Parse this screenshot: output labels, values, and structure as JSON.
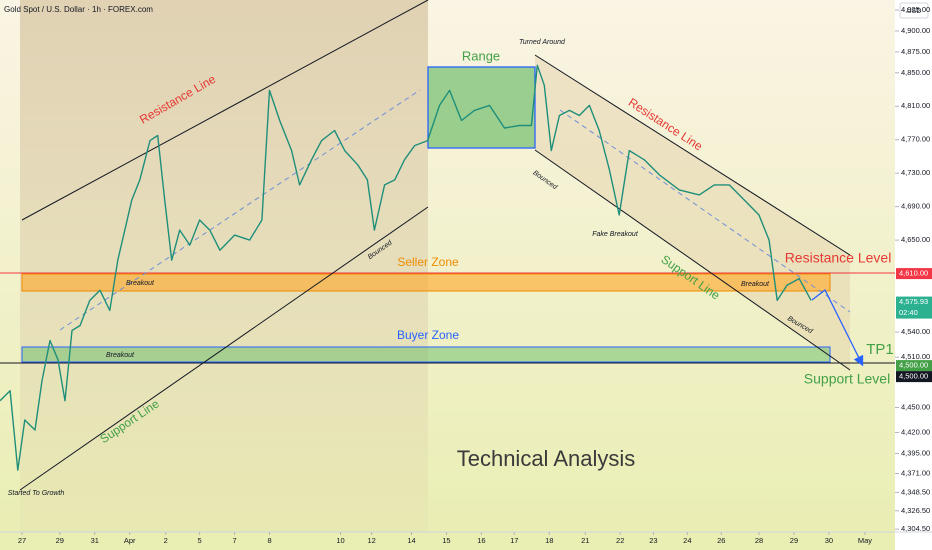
{
  "header": {
    "title": "Gold Spot / U.S. Dollar · 1h · FOREX.com",
    "currency": "USD"
  },
  "chart_data": {
    "type": "line",
    "color": "#1f8f7a",
    "x": [
      0,
      0.29,
      0.51,
      0.71,
      1,
      1.2,
      1.43,
      1.66,
      1.86,
      2.06,
      2.29,
      2.57,
      2.86,
      3.14,
      3.37,
      3.57,
      3.77,
      4,
      4.29,
      4.51,
      4.71,
      4.91,
      5.14,
      5.43,
      5.71,
      6,
      6.29,
      6.71,
      7.14,
      7.49,
      7.71,
      8,
      8.34,
      8.57,
      8.91,
      9.2,
      9.57,
      9.86,
      10.23,
      10.51,
      10.71,
      11,
      11.29,
      11.57,
      11.86,
      12.23,
      12.57,
      12.86,
      13.2,
      13.57,
      14,
      14.43,
      14.86,
      15.2,
      15.37,
      15.57,
      15.77,
      16,
      16.29,
      16.57,
      16.86,
      17.14,
      17.43,
      17.71,
      18,
      18.43,
      18.86,
      19.43,
      20,
      20.43,
      20.86,
      21.29,
      21.71,
      22,
      22.23,
      22.51,
      22.86,
      23.2
    ],
    "values": [
      4458,
      4470,
      4375,
      4435,
      4423,
      4482,
      4530,
      4507,
      4458,
      4542,
      4548,
      4578,
      4590,
      4566,
      4626,
      4662,
      4698,
      4722,
      4769,
      4775,
      4698,
      4626,
      4662,
      4644,
      4674,
      4662,
      4638,
      4656,
      4650,
      4674,
      4829,
      4793,
      4757,
      4716,
      4746,
      4769,
      4781,
      4757,
      4740,
      4722,
      4662,
      4716,
      4722,
      4746,
      4763,
      4769,
      4811,
      4829,
      4793,
      4805,
      4811,
      4784,
      4787,
      4787,
      4859,
      4835,
      4757,
      4799,
      4805,
      4799,
      4811,
      4781,
      4734,
      4680,
      4757,
      4746,
      4728,
      4710,
      4704,
      4716,
      4716,
      4698,
      4680,
      4650,
      4578,
      4596,
      4604,
      4578
    ],
    "xlim": [
      0,
      25.6
    ],
    "xticks": [
      {
        "value": 0.63,
        "label": "27"
      },
      {
        "value": 1.71,
        "label": "29"
      },
      {
        "value": 2.71,
        "label": "31"
      },
      {
        "value": 3.71,
        "label": "Apr"
      },
      {
        "value": 4.74,
        "label": "2"
      },
      {
        "value": 5.71,
        "label": "5"
      },
      {
        "value": 6.71,
        "label": "7"
      },
      {
        "value": 7.71,
        "label": "8"
      },
      {
        "value": 9.74,
        "label": "10"
      },
      {
        "value": 10.63,
        "label": "12"
      },
      {
        "value": 11.77,
        "label": "14"
      },
      {
        "value": 12.77,
        "label": "15"
      },
      {
        "value": 13.77,
        "label": "16"
      },
      {
        "value": 14.71,
        "label": "17"
      },
      {
        "value": 15.71,
        "label": "18"
      },
      {
        "value": 16.74,
        "label": "21"
      },
      {
        "value": 17.74,
        "label": "22"
      },
      {
        "value": 18.69,
        "label": "23"
      },
      {
        "value": 19.66,
        "label": "24"
      },
      {
        "value": 20.63,
        "label": "26"
      },
      {
        "value": 21.71,
        "label": "28"
      },
      {
        "value": 22.71,
        "label": "29"
      },
      {
        "value": 23.71,
        "label": "30"
      },
      {
        "value": 24.74,
        "label": "May"
      }
    ],
    "ylim": [
      4282,
      4937
    ],
    "yticks": [
      {
        "value": 4925,
        "label": "4,925.00"
      },
      {
        "value": 4900,
        "label": "4,900.00"
      },
      {
        "value": 4875,
        "label": "4,875.00"
      },
      {
        "value": 4850,
        "label": "4,850.00"
      },
      {
        "value": 4810,
        "label": "4,810.00"
      },
      {
        "value": 4770,
        "label": "4,770.00"
      },
      {
        "value": 4730,
        "label": "4,730.00"
      },
      {
        "value": 4690,
        "label": "4,690.00"
      },
      {
        "value": 4650,
        "label": "4,650.00"
      },
      {
        "value": 4540,
        "label": "4,540.00"
      },
      {
        "value": 4510,
        "label": "4,510.00"
      },
      {
        "value": 4450,
        "label": "4,450.00"
      },
      {
        "value": 4420,
        "label": "4,420.00"
      },
      {
        "value": 4395,
        "label": "4,395.00"
      },
      {
        "value": 4371,
        "label": "4,371.00"
      },
      {
        "value": 4348.5,
        "label": "4,348.50"
      },
      {
        "value": 4326.5,
        "label": "4,326.50"
      },
      {
        "value": 4304.5,
        "label": "4,304.50"
      }
    ],
    "grid": false,
    "price_tags": [
      {
        "value": 4610,
        "label": "4,610.00",
        "color": "#f23645"
      },
      {
        "value": 4575.93,
        "label": "4,575.93",
        "sub": "02:40",
        "color": "#2bb090"
      },
      {
        "value": 4500,
        "label": "4,500.00",
        "color": "#43a047"
      },
      {
        "value": 4500,
        "label": "4,500.00",
        "color": "#131722"
      }
    ],
    "annotations": [
      "Resistance Line",
      "Support Line",
      "Range",
      "Turned Around",
      "Bounced",
      "Bounced",
      "Fake Breakout",
      "Resistance Line",
      "Support Line",
      "Seller Zone",
      "Buyer Zone",
      "Breakout",
      "Breakout",
      "Breakout",
      "Bounced",
      "Resistance Level",
      "TP1",
      "Support Level",
      "Started To Growth"
    ],
    "footer": "Technical Analysis"
  }
}
